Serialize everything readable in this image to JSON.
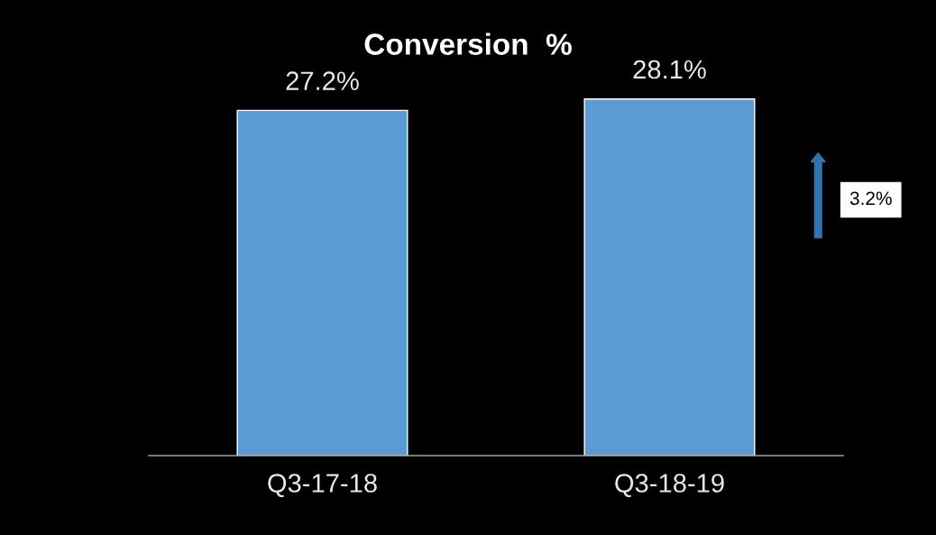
{
  "chart_data": {
    "type": "bar",
    "title": "Conversion  %",
    "categories": [
      "Q3-17-18",
      "Q3-18-19"
    ],
    "values": [
      27.2,
      28.1
    ],
    "value_labels": [
      "27.2%",
      "28.1%"
    ],
    "color": "#5b9bd5",
    "tick_labels": "x",
    "grid": false,
    "legend": false,
    "annotations": [
      "3.2%"
    ]
  }
}
